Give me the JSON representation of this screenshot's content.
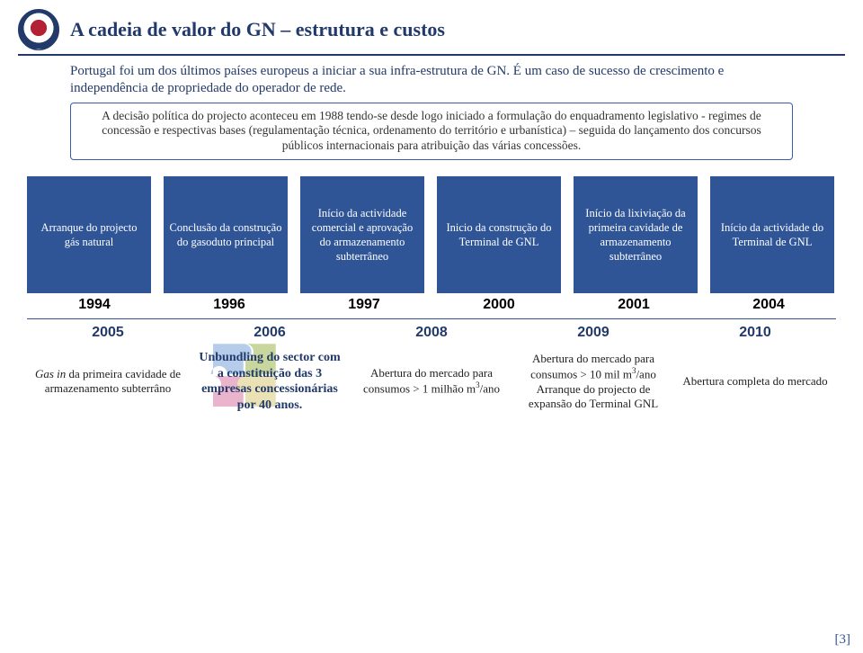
{
  "title": "A cadeia de valor do GN – estrutura e custos",
  "intro": "Portugal foi um dos últimos países europeus a iniciar a sua infra-estrutura de GN. É um caso de sucesso de crescimento e independência de propriedade do operador de rede.",
  "box": "A decisão política do projecto aconteceu em 1988 tendo-se desde logo iniciado a formulação do enquadramento legislativo - regimes de concessão e respectivas bases (regulamentação técnica, ordenamento do território e urbanística) – seguida do lançamento dos concursos públicos internacionais para atribuição das várias concessões.",
  "cards": [
    "Arranque do projecto gás natural",
    "Conclusão da construção do gasoduto principal",
    "Início da actividade comercial e aprovação do armazenamento subterrâneo",
    "Inicio da construção do Terminal de GNL",
    "Início da lixiviação da primeira cavidade de armazenamento subterrâneo",
    "Início da actividade do Terminal de GNL"
  ],
  "years1": [
    "1994",
    "1996",
    "1997",
    "2000",
    "2001",
    "2004"
  ],
  "years2": [
    "2005",
    "2006",
    "2008",
    "2009",
    "2010"
  ],
  "row2": [
    "<em>Gas in</em> da primeira cavidade de armazenamento subterrâno",
    "Unbundling do sector com a constituição das 3 empresas concessionárias por 40 anos.",
    "Abertura do mercado para consumos &gt; 1 milhão m<sup>3</sup>/ano",
    "Abertura do mercado para consumos &gt; 10 mil m<sup>3</sup>/ano Arranque do projecto de expansão do Terminal GNL",
    "Abertura completa do mercado"
  ],
  "pagenum": "[3]"
}
